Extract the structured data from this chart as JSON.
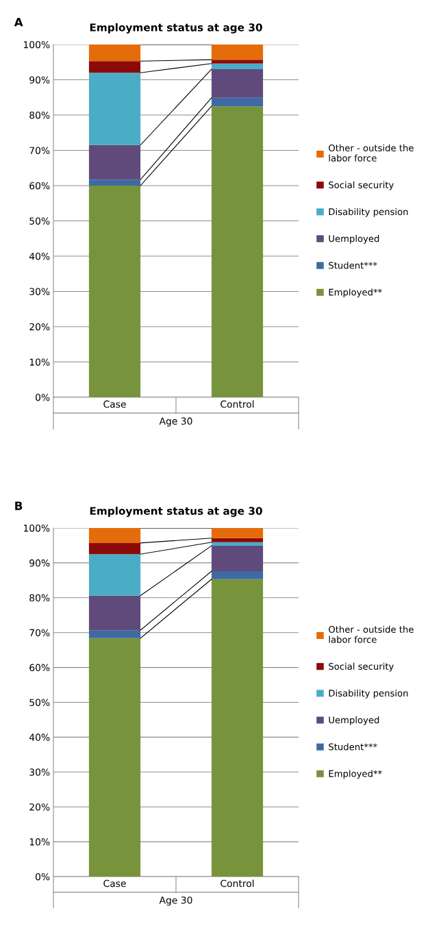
{
  "chart_data": [
    {
      "type": "bar",
      "title": "Employment status at age 30",
      "stacked": true,
      "xlabel": "Age 30",
      "annotations": [
        "A"
      ],
      "categories": [
        "Case",
        "Control"
      ],
      "ylim": [
        0,
        1
      ],
      "grid": "y",
      "legend": "right",
      "yticks": [
        {
          "value": 0,
          "label": "0%"
        },
        {
          "value": 0.1,
          "label": "10%"
        },
        {
          "value": 0.2,
          "label": "20%"
        },
        {
          "value": 0.3,
          "label": "30%"
        },
        {
          "value": 0.4,
          "label": "40%"
        },
        {
          "value": 0.5,
          "label": "50%"
        },
        {
          "value": 0.6,
          "label": "60%"
        },
        {
          "value": 0.7,
          "label": "70%"
        },
        {
          "value": 0.8,
          "label": "80%"
        },
        {
          "value": 0.9,
          "label": "90%"
        },
        {
          "value": 1,
          "label": "100%"
        }
      ],
      "series": [
        {
          "name": "Employed**",
          "color": "#77933c",
          "values": [
            0.6,
            0.825
          ]
        },
        {
          "name": "Student***",
          "color": "#3e69a3",
          "values": [
            0.017,
            0.024
          ]
        },
        {
          "name": "Uemployed",
          "color": "#604a7b",
          "values": [
            0.098,
            0.081
          ]
        },
        {
          "name": "Disability pension",
          "color": "#4bacc6",
          "values": [
            0.205,
            0.016
          ]
        },
        {
          "name": "Social security",
          "color": "#8c0a0a",
          "values": [
            0.033,
            0.011
          ]
        },
        {
          "name": "Other - outside the labor force",
          "color": "#e46c0a",
          "values": [
            0.047,
            0.043
          ]
        }
      ]
    },
    {
      "type": "bar",
      "title": "Employment status at age 30",
      "stacked": true,
      "xlabel": "Age 30",
      "annotations": [
        "B"
      ],
      "categories": [
        "Case",
        "Control"
      ],
      "ylim": [
        0,
        1
      ],
      "grid": "y",
      "legend": "right",
      "yticks": [
        {
          "value": 0,
          "label": "0%"
        },
        {
          "value": 0.1,
          "label": "10%"
        },
        {
          "value": 0.2,
          "label": "20%"
        },
        {
          "value": 0.3,
          "label": "30%"
        },
        {
          "value": 0.4,
          "label": "40%"
        },
        {
          "value": 0.5,
          "label": "50%"
        },
        {
          "value": 0.6,
          "label": "60%"
        },
        {
          "value": 0.7,
          "label": "70%"
        },
        {
          "value": 0.8,
          "label": "80%"
        },
        {
          "value": 0.9,
          "label": "90%"
        },
        {
          "value": 1,
          "label": "100%"
        }
      ],
      "series": [
        {
          "name": "Employed**",
          "color": "#77933c",
          "values": [
            0.684,
            0.853
          ]
        },
        {
          "name": "Student***",
          "color": "#3e69a3",
          "values": [
            0.023,
            0.023
          ]
        },
        {
          "name": "Uemployed",
          "color": "#604a7b",
          "values": [
            0.099,
            0.073
          ]
        },
        {
          "name": "Disability pension",
          "color": "#4bacc6",
          "values": [
            0.119,
            0.01
          ]
        },
        {
          "name": "Social security",
          "color": "#8c0a0a",
          "values": [
            0.032,
            0.012
          ]
        },
        {
          "name": "Other - outside the labor force",
          "color": "#e46c0a",
          "values": [
            0.043,
            0.029
          ]
        }
      ]
    }
  ]
}
